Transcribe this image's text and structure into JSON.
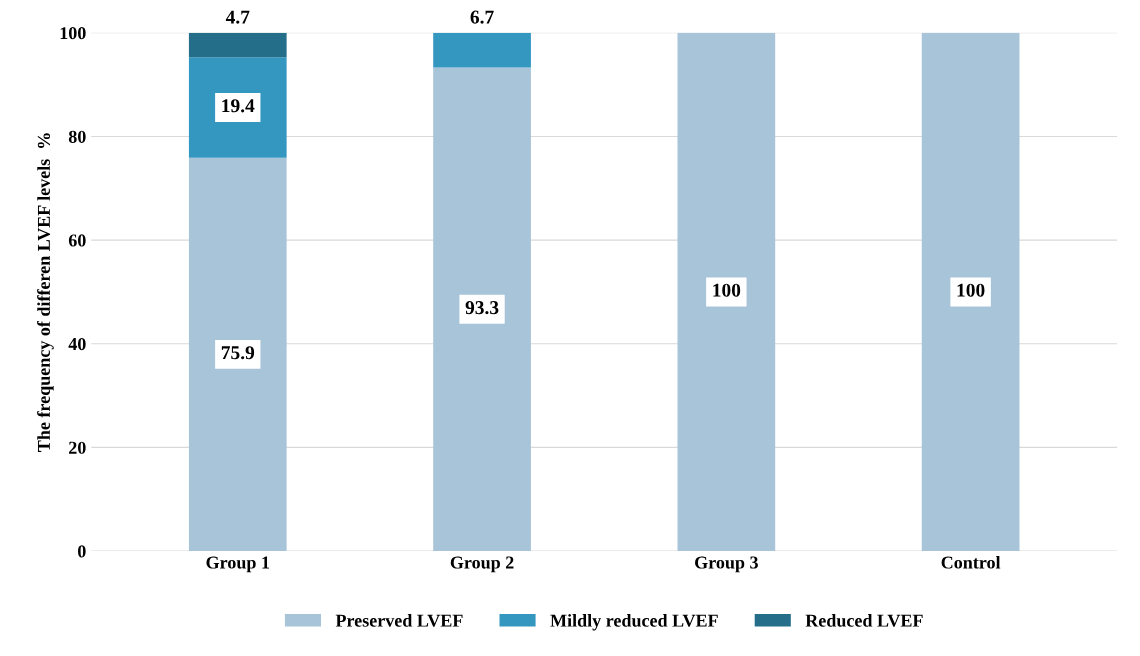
{
  "chart_data": {
    "type": "bar",
    "stacked": true,
    "ylabel": "The frequency of differen LVEF levels  %",
    "categories": [
      "Group 1",
      "Group 2",
      "Group 3",
      "Control"
    ],
    "series": [
      {
        "name": "Preserved LVEF",
        "color": "#a7c4d8",
        "values": [
          75.9,
          93.3,
          100,
          100
        ],
        "value_labels": [
          "75.9",
          "93.3",
          "100",
          "100"
        ]
      },
      {
        "name": "Mildly reduced LVEF",
        "color": "#3497c0",
        "values": [
          19.4,
          6.7,
          0,
          0
        ],
        "value_labels": [
          "19.4",
          "6.7",
          null,
          null
        ]
      },
      {
        "name": "Reduced LVEF",
        "color": "#246e8a",
        "values": [
          4.7,
          0,
          0,
          0
        ],
        "value_labels": [
          "4.7",
          null,
          null,
          null
        ]
      }
    ],
    "ylim": [
      0,
      100
    ],
    "yticks": [
      0,
      20,
      40,
      60,
      80,
      100
    ],
    "grid": "y",
    "legend": "bottom"
  }
}
